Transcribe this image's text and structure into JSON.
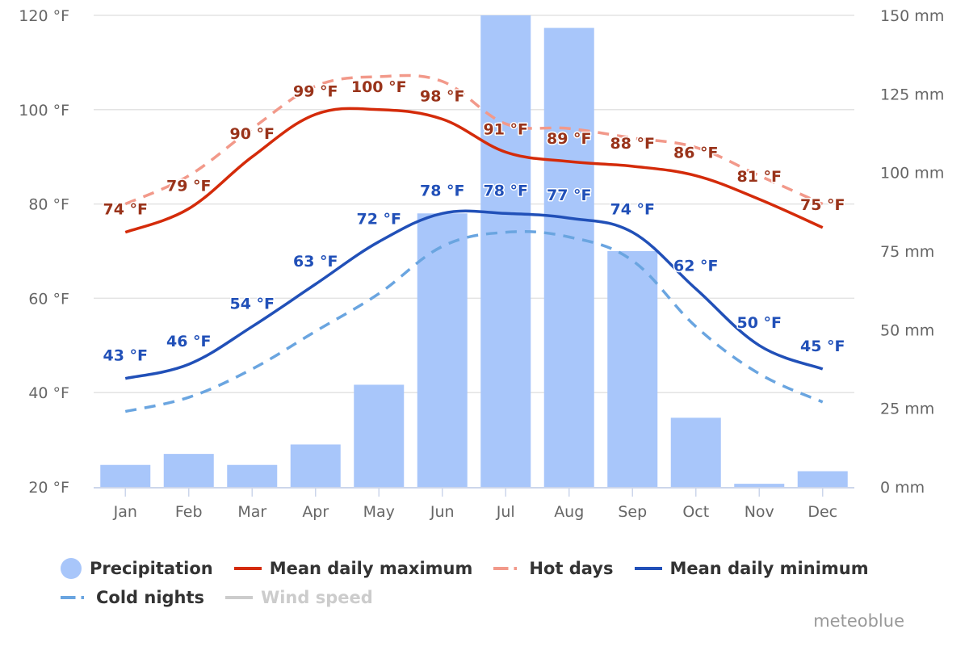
{
  "chart_data": {
    "type": "bar+line",
    "title": "",
    "categories": [
      "Jan",
      "Feb",
      "Mar",
      "Apr",
      "May",
      "Jun",
      "Jul",
      "Aug",
      "Sep",
      "Oct",
      "Nov",
      "Dec"
    ],
    "y_left": {
      "label": "",
      "ticks": [
        "20 °F",
        "40 °F",
        "60 °F",
        "80 °F",
        "100 °F",
        "120 °F"
      ],
      "tick_values": [
        20,
        40,
        60,
        80,
        100,
        120
      ],
      "range": [
        20,
        120
      ],
      "unit": "°F"
    },
    "y_right": {
      "label": "",
      "ticks": [
        "0 mm",
        "25 mm",
        "50 mm",
        "75 mm",
        "100 mm",
        "125 mm",
        "150 mm"
      ],
      "tick_values": [
        0,
        25,
        50,
        75,
        100,
        125,
        150
      ],
      "range": [
        0,
        150
      ],
      "unit": "mm"
    },
    "grid": true,
    "legend_position": "bottom",
    "series": [
      {
        "name": "Precipitation",
        "type": "bar",
        "axis": "right",
        "color": "#a8c6fa",
        "values": [
          7,
          10.5,
          7,
          13.5,
          32.5,
          87,
          150,
          146,
          75,
          22,
          1,
          5
        ],
        "data_labels": false,
        "visible": true
      },
      {
        "name": "Mean daily maximum",
        "type": "line",
        "axis": "left",
        "color": "#d42b0a",
        "dash": false,
        "values": [
          74,
          79,
          90,
          99,
          100,
          98,
          91,
          89,
          88,
          86,
          81,
          75
        ],
        "data_labels": [
          "74 °F",
          "79 °F",
          "90 °F",
          "99 °F",
          "100 °F",
          "98 °F",
          "91 °F",
          "89 °F",
          "88 °F",
          "86 °F",
          "81 °F",
          "75 °F"
        ],
        "label_color": "#99331a",
        "visible": true
      },
      {
        "name": "Hot days",
        "type": "line",
        "axis": "left",
        "color": "#f2998a",
        "dash": true,
        "values": [
          80,
          86,
          96,
          105,
          107,
          106,
          97,
          96,
          94,
          92,
          86,
          80
        ],
        "data_labels": false,
        "visible": true
      },
      {
        "name": "Mean daily minimum",
        "type": "line",
        "axis": "left",
        "color": "#2150b8",
        "dash": false,
        "values": [
          43,
          46,
          54,
          63,
          72,
          78,
          78,
          77,
          74,
          62,
          50,
          45
        ],
        "data_labels": [
          "43 °F",
          "46 °F",
          "54 °F",
          "63 °F",
          "72 °F",
          "78 °F",
          "78 °F",
          "77 °F",
          "74 °F",
          "62 °F",
          "50 °F",
          "45 °F"
        ],
        "label_color": "#2150b8",
        "visible": true
      },
      {
        "name": "Cold nights",
        "type": "line",
        "axis": "left",
        "color": "#6aa5e0",
        "dash": true,
        "values": [
          36,
          39,
          45,
          53,
          61,
          71,
          74,
          73,
          68,
          54,
          44,
          38
        ],
        "data_labels": false,
        "visible": true
      },
      {
        "name": "Wind speed",
        "type": "line",
        "axis": "left",
        "color": "#cccccc",
        "dash": false,
        "values": [],
        "data_labels": false,
        "visible": false
      }
    ]
  },
  "legend": {
    "items": [
      {
        "label": "Precipitation",
        "symbol": "circle",
        "color": "#a8c6fa",
        "hidden": false
      },
      {
        "label": "Mean daily maximum",
        "symbol": "line",
        "color": "#d42b0a",
        "hidden": false
      },
      {
        "label": "Hot days",
        "symbol": "dash",
        "color": "#f2998a",
        "hidden": false
      },
      {
        "label": "Mean daily minimum",
        "symbol": "line",
        "color": "#2150b8",
        "hidden": false
      },
      {
        "label": "Cold nights",
        "symbol": "dash",
        "color": "#6aa5e0",
        "hidden": false
      },
      {
        "label": "Wind speed",
        "symbol": "line",
        "color": "#cccccc",
        "hidden": true
      }
    ]
  },
  "credit": "meteoblue"
}
